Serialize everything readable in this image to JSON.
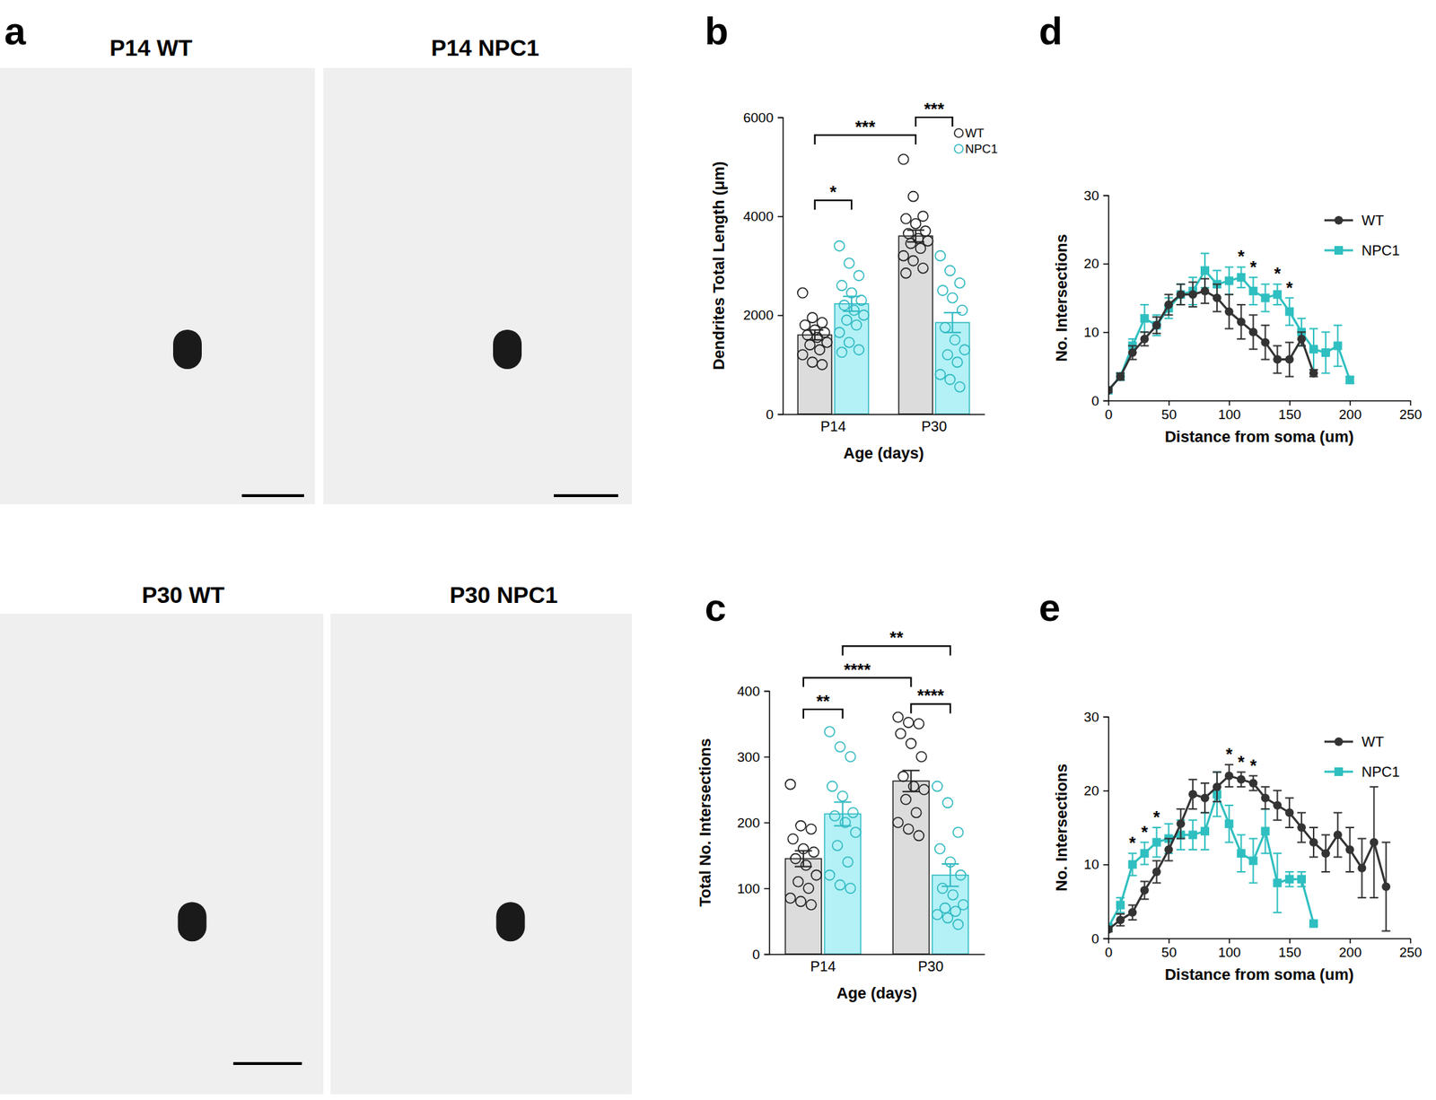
{
  "micrographs": {
    "panel": "a",
    "images": [
      {
        "label": "P14 WT"
      },
      {
        "label": "P14 NPC1"
      },
      {
        "label": "P30 WT"
      },
      {
        "label": "P30 NPC1"
      }
    ]
  },
  "chart_data": [
    {
      "type": "bar",
      "title": "b",
      "x_label": "Age (days)",
      "y_label": "Dendrites Total Length (μm)",
      "categories": [
        "P14",
        "P30"
      ],
      "ylim": [
        0,
        6000
      ],
      "yticks": [
        0,
        2000,
        4000,
        6000
      ],
      "legend": "top-right",
      "series": [
        {
          "name": "WT",
          "color": "#222222",
          "values": [
            1600,
            3600
          ],
          "error": [
            100,
            120
          ],
          "points": [
            [
              2450,
              1950,
              1850,
              1800,
              1700,
              1650,
              1600,
              1550,
              1450,
              1400,
              1300,
              1200,
              1050,
              1000
            ],
            [
              5150,
              4400,
              4000,
              3950,
              3850,
              3700,
              3650,
              3550,
              3500,
              3450,
              3350,
              3200,
              3100,
              2950,
              2850
            ]
          ]
        },
        {
          "name": "NPC1",
          "color": "#2fb9c2",
          "values": [
            2230,
            1850
          ],
          "error": [
            150,
            200
          ],
          "points": [
            [
              3400,
              3050,
              2800,
              2600,
              2450,
              2300,
              2200,
              2100,
              2000,
              1900,
              1800,
              1650,
              1450,
              1300,
              1250
            ],
            [
              3200,
              2900,
              2650,
              2500,
              2350,
              2100,
              1750,
              1500,
              1300,
              1200,
              1050,
              800,
              700,
              550
            ]
          ]
        }
      ],
      "annotations": [
        "*",
        "***",
        "***"
      ]
    },
    {
      "type": "bar",
      "title": "c",
      "x_label": "Age (days)",
      "y_label": "Total No. Intersections",
      "categories": [
        "P14",
        "P30"
      ],
      "ylim": [
        0,
        400
      ],
      "yticks": [
        0,
        100,
        200,
        300,
        400
      ],
      "series": [
        {
          "color": "#222222",
          "values": [
            145,
            263
          ],
          "error": [
            12,
            16
          ],
          "points": [
            [
              258,
              195,
              190,
              175,
              160,
              155,
              145,
              135,
              120,
              110,
              100,
              85,
              80,
              75
            ],
            [
              360,
              352,
              350,
              335,
              320,
              300,
              270,
              255,
              250,
              235,
              215,
              200,
              190,
              180
            ]
          ]
        },
        {
          "color": "#2fb9c2",
          "values": [
            213,
            120
          ],
          "error": [
            18,
            17
          ],
          "points": [
            [
              338,
              315,
              300,
              255,
              240,
              215,
              210,
              200,
              185,
              165,
              140,
              120,
              105,
              100
            ],
            [
              255,
              230,
              185,
              160,
              140,
              120,
              100,
              90,
              75,
              70,
              65,
              60,
              55,
              45
            ]
          ]
        }
      ],
      "annotations": [
        "**",
        "****",
        "**",
        "****"
      ]
    },
    {
      "type": "line",
      "title": "d",
      "x_label": "Distance from soma (um)",
      "y_label": "No. Intersections",
      "xlim": [
        0,
        250
      ],
      "xticks": [
        0,
        50,
        100,
        150,
        200,
        250
      ],
      "ylim": [
        0,
        30
      ],
      "yticks": [
        0,
        10,
        20,
        30
      ],
      "legend": "top-right",
      "series": [
        {
          "name": "WT",
          "color": "#333333",
          "marker": "circle",
          "x": [
            0,
            10,
            20,
            30,
            40,
            50,
            60,
            70,
            80,
            90,
            100,
            110,
            120,
            130,
            140,
            150,
            160,
            170
          ],
          "values": [
            1.5,
            3.5,
            7,
            9,
            11,
            14,
            15.5,
            15.5,
            16,
            15,
            13,
            11.5,
            10,
            8.5,
            6,
            6,
            9,
            4
          ],
          "error": [
            0.3,
            0.5,
            1,
            1,
            1.2,
            1.5,
            1.5,
            1.8,
            1.8,
            2,
            2.5,
            2.5,
            2.5,
            2.5,
            2,
            2.5,
            1,
            0.5
          ]
        },
        {
          "name": "NPC1",
          "color": "#2fbfc0",
          "marker": "square",
          "x": [
            0,
            10,
            20,
            30,
            40,
            50,
            60,
            70,
            80,
            90,
            100,
            110,
            120,
            130,
            140,
            150,
            160,
            170,
            180,
            190,
            200
          ],
          "values": [
            1.5,
            3.5,
            8,
            12,
            11,
            13.5,
            15.5,
            16,
            19,
            17,
            17.5,
            18,
            16,
            15,
            15.5,
            13,
            10,
            7.5,
            7,
            8,
            3
          ],
          "error": [
            0.3,
            0.5,
            1,
            2,
            1.5,
            1.5,
            1.5,
            2,
            2.5,
            2,
            2,
            1.5,
            2,
            2,
            1.5,
            2,
            2,
            3,
            3,
            3,
            0.5
          ]
        }
      ],
      "annotations": [
        {
          "text": "*",
          "x": 110
        },
        {
          "text": "*",
          "x": 120
        },
        {
          "text": "*",
          "x": 140
        },
        {
          "text": "*",
          "x": 150
        }
      ]
    },
    {
      "type": "line",
      "title": "e",
      "x_label": "Distance from soma (um)",
      "y_label": "No. Intersections",
      "xlim": [
        0,
        250
      ],
      "xticks": [
        0,
        50,
        100,
        150,
        200,
        250
      ],
      "ylim": [
        0,
        30
      ],
      "yticks": [
        0,
        10,
        20,
        30
      ],
      "legend": "top-right",
      "series": [
        {
          "name": "WT",
          "color": "#333333",
          "marker": "circle",
          "x": [
            0,
            10,
            20,
            30,
            40,
            50,
            60,
            70,
            80,
            90,
            100,
            110,
            120,
            130,
            140,
            150,
            160,
            170,
            180,
            190,
            200,
            210,
            220,
            230
          ],
          "values": [
            1.2,
            2.5,
            3.5,
            6.5,
            9,
            12,
            15.5,
            19.5,
            19,
            20.5,
            22,
            21.5,
            21,
            19,
            18,
            17,
            15,
            13,
            11.5,
            14,
            12,
            9.5,
            13,
            7
          ],
          "error": [
            0.3,
            0.8,
            1,
            1.2,
            1.5,
            1.5,
            2,
            2,
            2,
            2,
            1.5,
            1,
            1,
            1.5,
            2,
            2,
            2,
            2,
            2.5,
            3,
            3,
            4,
            7.5,
            6
          ]
        },
        {
          "name": "NPC1",
          "color": "#2fbfc0",
          "marker": "square",
          "x": [
            0,
            10,
            20,
            30,
            40,
            50,
            60,
            70,
            80,
            90,
            100,
            110,
            120,
            130,
            140,
            150,
            160,
            170
          ],
          "values": [
            1.5,
            4.5,
            10,
            11.5,
            13,
            13.5,
            14,
            14,
            14.5,
            19.5,
            15.5,
            11.5,
            10.5,
            14.5,
            7.5,
            8,
            8,
            2
          ],
          "error": [
            0.3,
            1,
            1.5,
            1.5,
            2,
            2,
            2,
            2,
            2.5,
            3,
            2.5,
            2.5,
            3,
            3,
            4,
            1,
            1,
            0.3
          ]
        }
      ],
      "annotations": [
        {
          "text": "*",
          "x": 20
        },
        {
          "text": "*",
          "x": 30
        },
        {
          "text": "*",
          "x": 40
        },
        {
          "text": "*",
          "x": 100
        },
        {
          "text": "*",
          "x": 110
        },
        {
          "text": "*",
          "x": 120
        }
      ]
    }
  ]
}
